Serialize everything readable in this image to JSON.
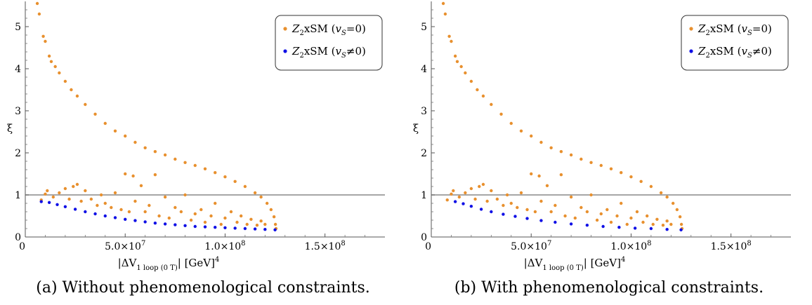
{
  "chart_data": [
    {
      "type": "scatter",
      "caption_label": "(a)",
      "caption_text": "Without phenomenological constraints.",
      "xlabel_main": "|ΔV",
      "xlabel_sub": "1 loop (0 T)",
      "xlabel_tail": "| [GeV]",
      "xlabel_sup": "4",
      "ylabel": "ξ",
      "xlim": [
        0,
        180000000
      ],
      "ylim": [
        0,
        5.6
      ],
      "x_ticks": [
        {
          "value": 0,
          "label": "0"
        },
        {
          "value": 50000000,
          "label": "5.0×10",
          "exp": "7"
        },
        {
          "value": 100000000,
          "label": "1.0×10",
          "exp": "8"
        },
        {
          "value": 150000000,
          "label": "1.5×10",
          "exp": "8"
        }
      ],
      "y_ticks": [
        {
          "value": 0,
          "label": "0"
        },
        {
          "value": 1,
          "label": "1"
        },
        {
          "value": 2,
          "label": "2"
        },
        {
          "value": 3,
          "label": "3"
        },
        {
          "value": 4,
          "label": "4"
        },
        {
          "value": 5,
          "label": "5"
        }
      ],
      "reference_line_y": 1,
      "legend": {
        "position": "top-right"
      },
      "series": [
        {
          "name_prefix": "Z",
          "name_sub": "2",
          "name_main": "xSM (",
          "name_v": "v",
          "name_vsub": "S",
          "name_end": "=0)",
          "color": "#e8902e",
          "points": [
            [
              6000000,
              5.55
            ],
            [
              7000000,
              5.3
            ],
            [
              9000000,
              4.77
            ],
            [
              10000000,
              4.65
            ],
            [
              12000000,
              4.3
            ],
            [
              13000000,
              4.17
            ],
            [
              15000000,
              4.05
            ],
            [
              17000000,
              3.9
            ],
            [
              20000000,
              3.7
            ],
            [
              23000000,
              3.5
            ],
            [
              26000000,
              3.35
            ],
            [
              30000000,
              3.15
            ],
            [
              35000000,
              2.92
            ],
            [
              40000000,
              2.7
            ],
            [
              45000000,
              2.52
            ],
            [
              50000000,
              2.4
            ],
            [
              55000000,
              2.25
            ],
            [
              60000000,
              2.12
            ],
            [
              65000000,
              2.03
            ],
            [
              70000000,
              1.95
            ],
            [
              75000000,
              1.85
            ],
            [
              80000000,
              1.77
            ],
            [
              85000000,
              1.7
            ],
            [
              90000000,
              1.62
            ],
            [
              95000000,
              1.53
            ],
            [
              100000000,
              1.43
            ],
            [
              105000000,
              1.32
            ],
            [
              110000000,
              1.2
            ],
            [
              115000000,
              1.05
            ],
            [
              118000000,
              0.95
            ],
            [
              121000000,
              0.8
            ],
            [
              123000000,
              0.65
            ],
            [
              124500000,
              0.48
            ],
            [
              125200000,
              0.3
            ],
            [
              125500000,
              0.2
            ],
            [
              8000000,
              0.88
            ],
            [
              10000000,
              1.02
            ],
            [
              11000000,
              1.1
            ],
            [
              14000000,
              0.95
            ],
            [
              17000000,
              1.05
            ],
            [
              20000000,
              1.15
            ],
            [
              22000000,
              0.9
            ],
            [
              24000000,
              1.2
            ],
            [
              26000000,
              1.25
            ],
            [
              28000000,
              0.85
            ],
            [
              30000000,
              1.1
            ],
            [
              33000000,
              0.9
            ],
            [
              36000000,
              0.75
            ],
            [
              38000000,
              1.0
            ],
            [
              40000000,
              0.8
            ],
            [
              43000000,
              0.7
            ],
            [
              45000000,
              1.05
            ],
            [
              48000000,
              0.65
            ],
            [
              50000000,
              1.5
            ],
            [
              52000000,
              0.6
            ],
            [
              54000000,
              1.45
            ],
            [
              55000000,
              0.85
            ],
            [
              58000000,
              1.22
            ],
            [
              60000000,
              0.6
            ],
            [
              62000000,
              0.75
            ],
            [
              65000000,
              1.48
            ],
            [
              67000000,
              0.5
            ],
            [
              70000000,
              0.95
            ],
            [
              72000000,
              0.45
            ],
            [
              75000000,
              0.7
            ],
            [
              78000000,
              0.6
            ],
            [
              80000000,
              1.0
            ],
            [
              83000000,
              0.4
            ],
            [
              85000000,
              0.55
            ],
            [
              88000000,
              0.65
            ],
            [
              90000000,
              0.35
            ],
            [
              93000000,
              0.5
            ],
            [
              95000000,
              0.8
            ],
            [
              98000000,
              0.3
            ],
            [
              100000000,
              0.45
            ],
            [
              103000000,
              0.6
            ],
            [
              106000000,
              0.35
            ],
            [
              108000000,
              0.5
            ],
            [
              111000000,
              0.3
            ],
            [
              113000000,
              0.42
            ],
            [
              116000000,
              0.28
            ],
            [
              118000000,
              0.38
            ],
            [
              120000000,
              0.3
            ]
          ]
        },
        {
          "name_prefix": "Z",
          "name_sub": "2",
          "name_main": "xSM (",
          "name_v": "v",
          "name_vsub": "S",
          "name_end": "≠0)",
          "color": "#1010e6",
          "points": [
            [
              8000000,
              0.84
            ],
            [
              12000000,
              0.82
            ],
            [
              16000000,
              0.77
            ],
            [
              20000000,
              0.72
            ],
            [
              25000000,
              0.66
            ],
            [
              30000000,
              0.6
            ],
            [
              35000000,
              0.55
            ],
            [
              40000000,
              0.5
            ],
            [
              45000000,
              0.46
            ],
            [
              50000000,
              0.42
            ],
            [
              55000000,
              0.39
            ],
            [
              60000000,
              0.36
            ],
            [
              65000000,
              0.33
            ],
            [
              70000000,
              0.31
            ],
            [
              75000000,
              0.29
            ],
            [
              80000000,
              0.27
            ],
            [
              85000000,
              0.25
            ],
            [
              90000000,
              0.24
            ],
            [
              95000000,
              0.23
            ],
            [
              100000000,
              0.22
            ],
            [
              105000000,
              0.21
            ],
            [
              110000000,
              0.2
            ],
            [
              115000000,
              0.19
            ],
            [
              120000000,
              0.18
            ],
            [
              125000000,
              0.17
            ]
          ]
        }
      ]
    },
    {
      "type": "scatter",
      "caption_label": "(b)",
      "caption_text": "With phenomenological constraints.",
      "xlabel_main": "|ΔV",
      "xlabel_sub": "1 loop (0 T)",
      "xlabel_tail": "| [GeV]",
      "xlabel_sup": "4",
      "ylabel": "ξ",
      "xlim": [
        0,
        180000000
      ],
      "ylim": [
        0,
        5.6
      ],
      "x_ticks": [
        {
          "value": 0,
          "label": "0"
        },
        {
          "value": 50000000,
          "label": "5.0×10",
          "exp": "7"
        },
        {
          "value": 100000000,
          "label": "1.0×10",
          "exp": "8"
        },
        {
          "value": 150000000,
          "label": "1.5×10",
          "exp": "8"
        }
      ],
      "y_ticks": [
        {
          "value": 0,
          "label": "0"
        },
        {
          "value": 1,
          "label": "1"
        },
        {
          "value": 2,
          "label": "2"
        },
        {
          "value": 3,
          "label": "3"
        },
        {
          "value": 4,
          "label": "4"
        },
        {
          "value": 5,
          "label": "5"
        }
      ],
      "reference_line_y": 1,
      "legend": {
        "position": "top-right"
      },
      "series": [
        {
          "name_prefix": "Z",
          "name_sub": "2",
          "name_main": "xSM (",
          "name_v": "v",
          "name_vsub": "S",
          "name_end": "=0)",
          "color": "#e8902e",
          "points": [
            [
              6000000,
              5.55
            ],
            [
              7000000,
              5.3
            ],
            [
              9000000,
              4.77
            ],
            [
              10000000,
              4.65
            ],
            [
              12000000,
              4.3
            ],
            [
              13000000,
              4.17
            ],
            [
              15000000,
              4.05
            ],
            [
              17000000,
              3.9
            ],
            [
              20000000,
              3.7
            ],
            [
              23000000,
              3.5
            ],
            [
              26000000,
              3.35
            ],
            [
              30000000,
              3.15
            ],
            [
              35000000,
              2.92
            ],
            [
              40000000,
              2.7
            ],
            [
              45000000,
              2.52
            ],
            [
              50000000,
              2.4
            ],
            [
              55000000,
              2.25
            ],
            [
              60000000,
              2.12
            ],
            [
              65000000,
              2.03
            ],
            [
              70000000,
              1.95
            ],
            [
              75000000,
              1.85
            ],
            [
              80000000,
              1.77
            ],
            [
              85000000,
              1.7
            ],
            [
              90000000,
              1.62
            ],
            [
              95000000,
              1.53
            ],
            [
              100000000,
              1.43
            ],
            [
              105000000,
              1.32
            ],
            [
              110000000,
              1.2
            ],
            [
              115000000,
              1.05
            ],
            [
              118000000,
              0.95
            ],
            [
              121000000,
              0.8
            ],
            [
              123000000,
              0.65
            ],
            [
              124500000,
              0.48
            ],
            [
              125200000,
              0.3
            ],
            [
              125500000,
              0.2
            ],
            [
              8000000,
              0.88
            ],
            [
              10000000,
              1.02
            ],
            [
              11000000,
              1.1
            ],
            [
              14000000,
              0.95
            ],
            [
              17000000,
              1.05
            ],
            [
              20000000,
              1.15
            ],
            [
              22000000,
              0.9
            ],
            [
              24000000,
              1.2
            ],
            [
              26000000,
              1.25
            ],
            [
              28000000,
              0.85
            ],
            [
              30000000,
              1.1
            ],
            [
              33000000,
              0.9
            ],
            [
              36000000,
              0.75
            ],
            [
              38000000,
              1.0
            ],
            [
              40000000,
              0.8
            ],
            [
              43000000,
              0.7
            ],
            [
              45000000,
              1.05
            ],
            [
              48000000,
              0.65
            ],
            [
              50000000,
              1.5
            ],
            [
              52000000,
              0.6
            ],
            [
              54000000,
              1.45
            ],
            [
              55000000,
              0.85
            ],
            [
              58000000,
              1.22
            ],
            [
              60000000,
              0.6
            ],
            [
              62000000,
              0.75
            ],
            [
              65000000,
              1.48
            ],
            [
              67000000,
              0.5
            ],
            [
              70000000,
              0.95
            ],
            [
              72000000,
              0.45
            ],
            [
              75000000,
              0.7
            ],
            [
              78000000,
              0.6
            ],
            [
              80000000,
              1.0
            ],
            [
              83000000,
              0.4
            ],
            [
              85000000,
              0.55
            ],
            [
              88000000,
              0.65
            ],
            [
              90000000,
              0.35
            ],
            [
              93000000,
              0.5
            ],
            [
              95000000,
              0.8
            ],
            [
              98000000,
              0.3
            ],
            [
              100000000,
              0.45
            ],
            [
              103000000,
              0.6
            ],
            [
              106000000,
              0.35
            ],
            [
              108000000,
              0.5
            ],
            [
              111000000,
              0.3
            ],
            [
              113000000,
              0.42
            ],
            [
              116000000,
              0.28
            ],
            [
              118000000,
              0.38
            ],
            [
              120000000,
              0.3
            ]
          ]
        },
        {
          "name_prefix": "Z",
          "name_sub": "2",
          "name_main": "xSM (",
          "name_v": "v",
          "name_vsub": "S",
          "name_end": "≠0)",
          "color": "#1010e6",
          "points": [
            [
              12000000,
              0.84
            ],
            [
              16000000,
              0.79
            ],
            [
              20000000,
              0.73
            ],
            [
              25000000,
              0.66
            ],
            [
              30000000,
              0.6
            ],
            [
              36000000,
              0.54
            ],
            [
              42000000,
              0.49
            ],
            [
              48000000,
              0.44
            ],
            [
              55000000,
              0.39
            ],
            [
              62000000,
              0.35
            ],
            [
              70000000,
              0.31
            ],
            [
              78000000,
              0.28
            ],
            [
              86000000,
              0.25
            ],
            [
              94000000,
              0.23
            ],
            [
              102000000,
              0.21
            ],
            [
              110000000,
              0.2
            ],
            [
              118000000,
              0.18
            ],
            [
              125000000,
              0.17
            ]
          ]
        }
      ]
    }
  ]
}
